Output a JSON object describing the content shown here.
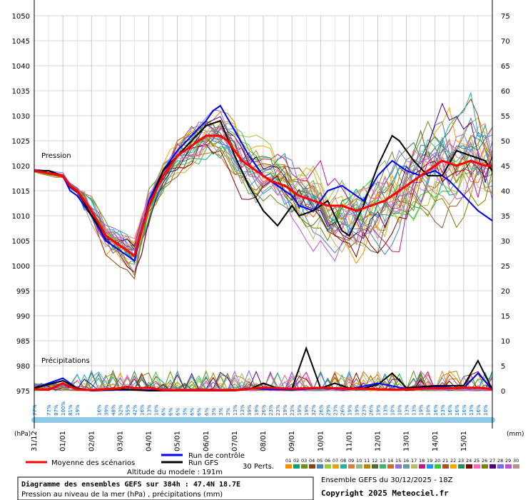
{
  "chart_data": {
    "type": "line",
    "title": "Diagramme des ensembles GEFS sur 384h : 47.4N 18.7E",
    "subtitle": "Pression au niveau de la mer (hPa) , précipitations (mm)",
    "run_info": "Ensemble GEFS du 30/12/2025 - 18Z",
    "copyright": "Copyright 2025 Meteociel.fr",
    "altitude": "Altitude du modele : 191m",
    "left_axis_label": "(hPa)",
    "right_axis_label": "(mm)",
    "pressure_label": "Pression",
    "precip_label": "Précipitations",
    "grid": true,
    "y_left": {
      "min": 975,
      "max": 1050,
      "step": 5,
      "ticks": [
        "975",
        "980",
        "985",
        "990",
        "995",
        "1000",
        "1005",
        "1010",
        "1015",
        "1020",
        "1025",
        "1030",
        "1035",
        "1040",
        "1045",
        "1050"
      ]
    },
    "y_right": {
      "min": 0,
      "max": 75,
      "step": 5,
      "ticks": [
        "0",
        "5",
        "10",
        "15",
        "20",
        "25",
        "30",
        "35",
        "40",
        "45",
        "50",
        "55",
        "60",
        "65",
        "70",
        "75"
      ]
    },
    "x_dates": [
      "31/12",
      "01/01",
      "02/01",
      "03/01",
      "04/01",
      "05/01",
      "06/01",
      "07/01",
      "08/01",
      "09/01",
      "10/01",
      "11/01",
      "12/01",
      "13/01",
      "14/01",
      "15/01"
    ],
    "x_hours": [
      0,
      384
    ],
    "precip_probability": [
      {
        "h": 0,
        "label": "77%"
      },
      {
        "h": 12,
        "label": "77%"
      },
      {
        "h": 18,
        "label": "87%"
      },
      {
        "h": 24,
        "label": "100%"
      },
      {
        "h": 30,
        "label": "81%"
      },
      {
        "h": 36,
        "label": "19%"
      },
      {
        "h": 54,
        "label": "16%"
      },
      {
        "h": 60,
        "label": "39%"
      },
      {
        "h": 66,
        "label": "48%"
      },
      {
        "h": 72,
        "label": "52%"
      },
      {
        "h": 78,
        "label": "55%"
      },
      {
        "h": 84,
        "label": "42%"
      },
      {
        "h": 90,
        "label": "16%"
      },
      {
        "h": 96,
        "label": "13%"
      },
      {
        "h": 102,
        "label": "10%"
      },
      {
        "h": 108,
        "label": "6%"
      },
      {
        "h": 114,
        "label": "6%"
      },
      {
        "h": 120,
        "label": "6%"
      },
      {
        "h": 126,
        "label": "3%"
      },
      {
        "h": 132,
        "label": "6%"
      },
      {
        "h": 138,
        "label": "6%"
      },
      {
        "h": 144,
        "label": "6%"
      },
      {
        "h": 150,
        "label": "3%"
      },
      {
        "h": 156,
        "label": "3%"
      },
      {
        "h": 162,
        "label": "3%"
      },
      {
        "h": 168,
        "label": "13%"
      },
      {
        "h": 174,
        "label": "13%"
      },
      {
        "h": 180,
        "label": "39%"
      },
      {
        "h": 186,
        "label": "19%"
      },
      {
        "h": 192,
        "label": "26%"
      },
      {
        "h": 198,
        "label": "23%"
      },
      {
        "h": 204,
        "label": "23%"
      },
      {
        "h": 210,
        "label": "19%"
      },
      {
        "h": 216,
        "label": "23%"
      },
      {
        "h": 222,
        "label": "19%"
      },
      {
        "h": 228,
        "label": "19%"
      },
      {
        "h": 234,
        "label": "32%"
      },
      {
        "h": 240,
        "label": "26%"
      },
      {
        "h": 246,
        "label": "29%"
      },
      {
        "h": 252,
        "label": "23%"
      },
      {
        "h": 258,
        "label": "26%"
      },
      {
        "h": 264,
        "label": "19%"
      },
      {
        "h": 270,
        "label": "19%"
      },
      {
        "h": 276,
        "label": "23%"
      },
      {
        "h": 282,
        "label": "26%"
      },
      {
        "h": 288,
        "label": "19%"
      },
      {
        "h": 294,
        "label": "13%"
      },
      {
        "h": 300,
        "label": "10%"
      },
      {
        "h": 306,
        "label": "10%"
      },
      {
        "h": 312,
        "label": "13%"
      },
      {
        "h": 318,
        "label": "13%"
      },
      {
        "h": 324,
        "label": "19%"
      },
      {
        "h": 330,
        "label": "10%"
      },
      {
        "h": 336,
        "label": "16%"
      },
      {
        "h": 342,
        "label": "13%"
      },
      {
        "h": 348,
        "label": "16%"
      },
      {
        "h": 354,
        "label": "16%"
      },
      {
        "h": 360,
        "label": "16%"
      },
      {
        "h": 366,
        "label": "13%"
      },
      {
        "h": 372,
        "label": "16%"
      },
      {
        "h": 378,
        "label": "10%"
      }
    ],
    "legend": {
      "mean_label": "Moyenne des scénarios",
      "control_label": "Run de contrôle",
      "gfs_label": "Run GFS",
      "perts_label": "30 Perts.",
      "perts_numbers": [
        "01",
        "02",
        "03",
        "04",
        "05",
        "06",
        "07",
        "08",
        "09",
        "10",
        "11",
        "12",
        "13",
        "14",
        "15",
        "16",
        "17",
        "18",
        "19",
        "20",
        "21",
        "22",
        "23",
        "24",
        "25",
        "26",
        "27",
        "28",
        "29",
        "30"
      ]
    },
    "series_colors": [
      "#ff8c00",
      "#00a86b",
      "#6b8e23",
      "#8b4513",
      "#4682b4",
      "#9acd32",
      "#daa520",
      "#20b2aa",
      "#cd853f",
      "#8fbc8f",
      "#b8860b",
      "#556b2f",
      "#3cb371",
      "#d2691e",
      "#9370db",
      "#5f9ea0",
      "#bdb76b",
      "#c71585",
      "#1e90ff",
      "#32cd32",
      "#a0522d",
      "#ffa500",
      "#2e8b57",
      "#800000",
      "#ff69b4",
      "#808000",
      "#4b0082",
      "#7b68ee",
      "#ba55d3",
      "#bc8f8f"
    ],
    "mean_color": "#ff0000",
    "control_color": "#0000ff",
    "gfs_color": "#000000",
    "series": [
      {
        "key": "mean",
        "pressure": [
          [
            0,
            1019
          ],
          [
            12,
            1018.5
          ],
          [
            24,
            1018
          ],
          [
            30,
            1016
          ],
          [
            36,
            1015
          ],
          [
            48,
            1011
          ],
          [
            60,
            1006
          ],
          [
            72,
            1004
          ],
          [
            84,
            1002
          ],
          [
            96,
            1012
          ],
          [
            108,
            1018
          ],
          [
            120,
            1022
          ],
          [
            132,
            1024
          ],
          [
            144,
            1026
          ],
          [
            156,
            1026
          ],
          [
            162,
            1025
          ],
          [
            174,
            1021
          ],
          [
            186,
            1019
          ],
          [
            198,
            1017
          ],
          [
            210,
            1016
          ],
          [
            222,
            1014
          ],
          [
            234,
            1013
          ],
          [
            246,
            1012
          ],
          [
            258,
            1012
          ],
          [
            270,
            1011
          ],
          [
            282,
            1012
          ],
          [
            294,
            1013
          ],
          [
            306,
            1015
          ],
          [
            318,
            1017
          ],
          [
            330,
            1019
          ],
          [
            342,
            1021
          ],
          [
            354,
            1020
          ],
          [
            366,
            1021
          ],
          [
            378,
            1020
          ],
          [
            384,
            1020
          ]
        ],
        "precip": [
          [
            0,
            0.3
          ],
          [
            12,
            0.2
          ],
          [
            24,
            1.5
          ],
          [
            30,
            0.8
          ],
          [
            36,
            0.3
          ],
          [
            48,
            0.1
          ],
          [
            60,
            0.3
          ],
          [
            72,
            0.5
          ],
          [
            78,
            0.8
          ],
          [
            84,
            0.5
          ],
          [
            96,
            0.6
          ],
          [
            108,
            0.1
          ],
          [
            120,
            0.1
          ],
          [
            144,
            0.1
          ],
          [
            168,
            0.1
          ],
          [
            180,
            0.4
          ],
          [
            192,
            0.6
          ],
          [
            204,
            0.5
          ],
          [
            216,
            0.4
          ],
          [
            228,
            0.5
          ],
          [
            240,
            0.6
          ],
          [
            252,
            0.5
          ],
          [
            264,
            0.4
          ],
          [
            276,
            0.4
          ],
          [
            288,
            0.3
          ],
          [
            300,
            0.2
          ],
          [
            312,
            0.3
          ],
          [
            324,
            0.4
          ],
          [
            336,
            0.5
          ],
          [
            348,
            0.5
          ],
          [
            360,
            0.6
          ],
          [
            372,
            0.6
          ],
          [
            384,
            0.3
          ]
        ]
      },
      {
        "key": "control",
        "pressure": [
          [
            0,
            1019
          ],
          [
            12,
            1019
          ],
          [
            24,
            1018
          ],
          [
            30,
            1015
          ],
          [
            36,
            1014
          ],
          [
            48,
            1010
          ],
          [
            60,
            1005
          ],
          [
            72,
            1003
          ],
          [
            84,
            1001
          ],
          [
            96,
            1013
          ],
          [
            108,
            1019
          ],
          [
            120,
            1023
          ],
          [
            132,
            1026
          ],
          [
            144,
            1029
          ],
          [
            150,
            1031
          ],
          [
            156,
            1032
          ],
          [
            168,
            1027
          ],
          [
            180,
            1022
          ],
          [
            192,
            1018
          ],
          [
            204,
            1016
          ],
          [
            216,
            1014
          ],
          [
            222,
            1012
          ],
          [
            234,
            1011
          ],
          [
            246,
            1015
          ],
          [
            258,
            1016
          ],
          [
            264,
            1015
          ],
          [
            276,
            1013
          ],
          [
            288,
            1018
          ],
          [
            300,
            1021
          ],
          [
            312,
            1019
          ],
          [
            324,
            1018
          ],
          [
            336,
            1019
          ],
          [
            348,
            1017
          ],
          [
            360,
            1014
          ],
          [
            372,
            1011
          ],
          [
            384,
            1009
          ]
        ],
        "precip": [
          [
            0,
            0.5
          ],
          [
            24,
            2.5
          ],
          [
            36,
            0.5
          ],
          [
            48,
            0
          ],
          [
            72,
            0.2
          ],
          [
            96,
            0.1
          ],
          [
            120,
            0
          ],
          [
            168,
            0.1
          ],
          [
            180,
            0.5
          ],
          [
            192,
            0.3
          ],
          [
            216,
            0.2
          ],
          [
            240,
            0.5
          ],
          [
            264,
            0.3
          ],
          [
            288,
            1.5
          ],
          [
            312,
            0.4
          ],
          [
            336,
            0.8
          ],
          [
            360,
            0.5
          ],
          [
            372,
            3.5
          ],
          [
            384,
            0.2
          ]
        ]
      },
      {
        "key": "gfs",
        "pressure": [
          [
            0,
            1019
          ],
          [
            12,
            1019
          ],
          [
            24,
            1018
          ],
          [
            30,
            1016
          ],
          [
            36,
            1015
          ],
          [
            48,
            1010
          ],
          [
            60,
            1006
          ],
          [
            72,
            1004
          ],
          [
            84,
            1002
          ],
          [
            96,
            1012
          ],
          [
            108,
            1019
          ],
          [
            120,
            1022
          ],
          [
            132,
            1025
          ],
          [
            144,
            1028
          ],
          [
            156,
            1029
          ],
          [
            168,
            1022
          ],
          [
            180,
            1016
          ],
          [
            192,
            1011
          ],
          [
            204,
            1008
          ],
          [
            216,
            1012
          ],
          [
            222,
            1010
          ],
          [
            234,
            1011
          ],
          [
            246,
            1013
          ],
          [
            258,
            1007
          ],
          [
            264,
            1006
          ],
          [
            276,
            1012
          ],
          [
            288,
            1020
          ],
          [
            300,
            1026
          ],
          [
            306,
            1025
          ],
          [
            318,
            1021
          ],
          [
            330,
            1018
          ],
          [
            342,
            1018
          ],
          [
            354,
            1023
          ],
          [
            366,
            1022
          ],
          [
            378,
            1021
          ],
          [
            384,
            1019
          ]
        ],
        "precip": [
          [
            0,
            0.5
          ],
          [
            24,
            2
          ],
          [
            36,
            0.5
          ],
          [
            48,
            0
          ],
          [
            72,
            0.3
          ],
          [
            96,
            0
          ],
          [
            168,
            0
          ],
          [
            180,
            0.3
          ],
          [
            192,
            1.5
          ],
          [
            204,
            0.5
          ],
          [
            216,
            0.4
          ],
          [
            228,
            8.5
          ],
          [
            240,
            0.5
          ],
          [
            252,
            1.5
          ],
          [
            264,
            0.5
          ],
          [
            276,
            0.5
          ],
          [
            288,
            1.2
          ],
          [
            300,
            3.5
          ],
          [
            312,
            0.6
          ],
          [
            336,
            1
          ],
          [
            360,
            1
          ],
          [
            372,
            6
          ],
          [
            384,
            0.2
          ]
        ]
      }
    ]
  }
}
